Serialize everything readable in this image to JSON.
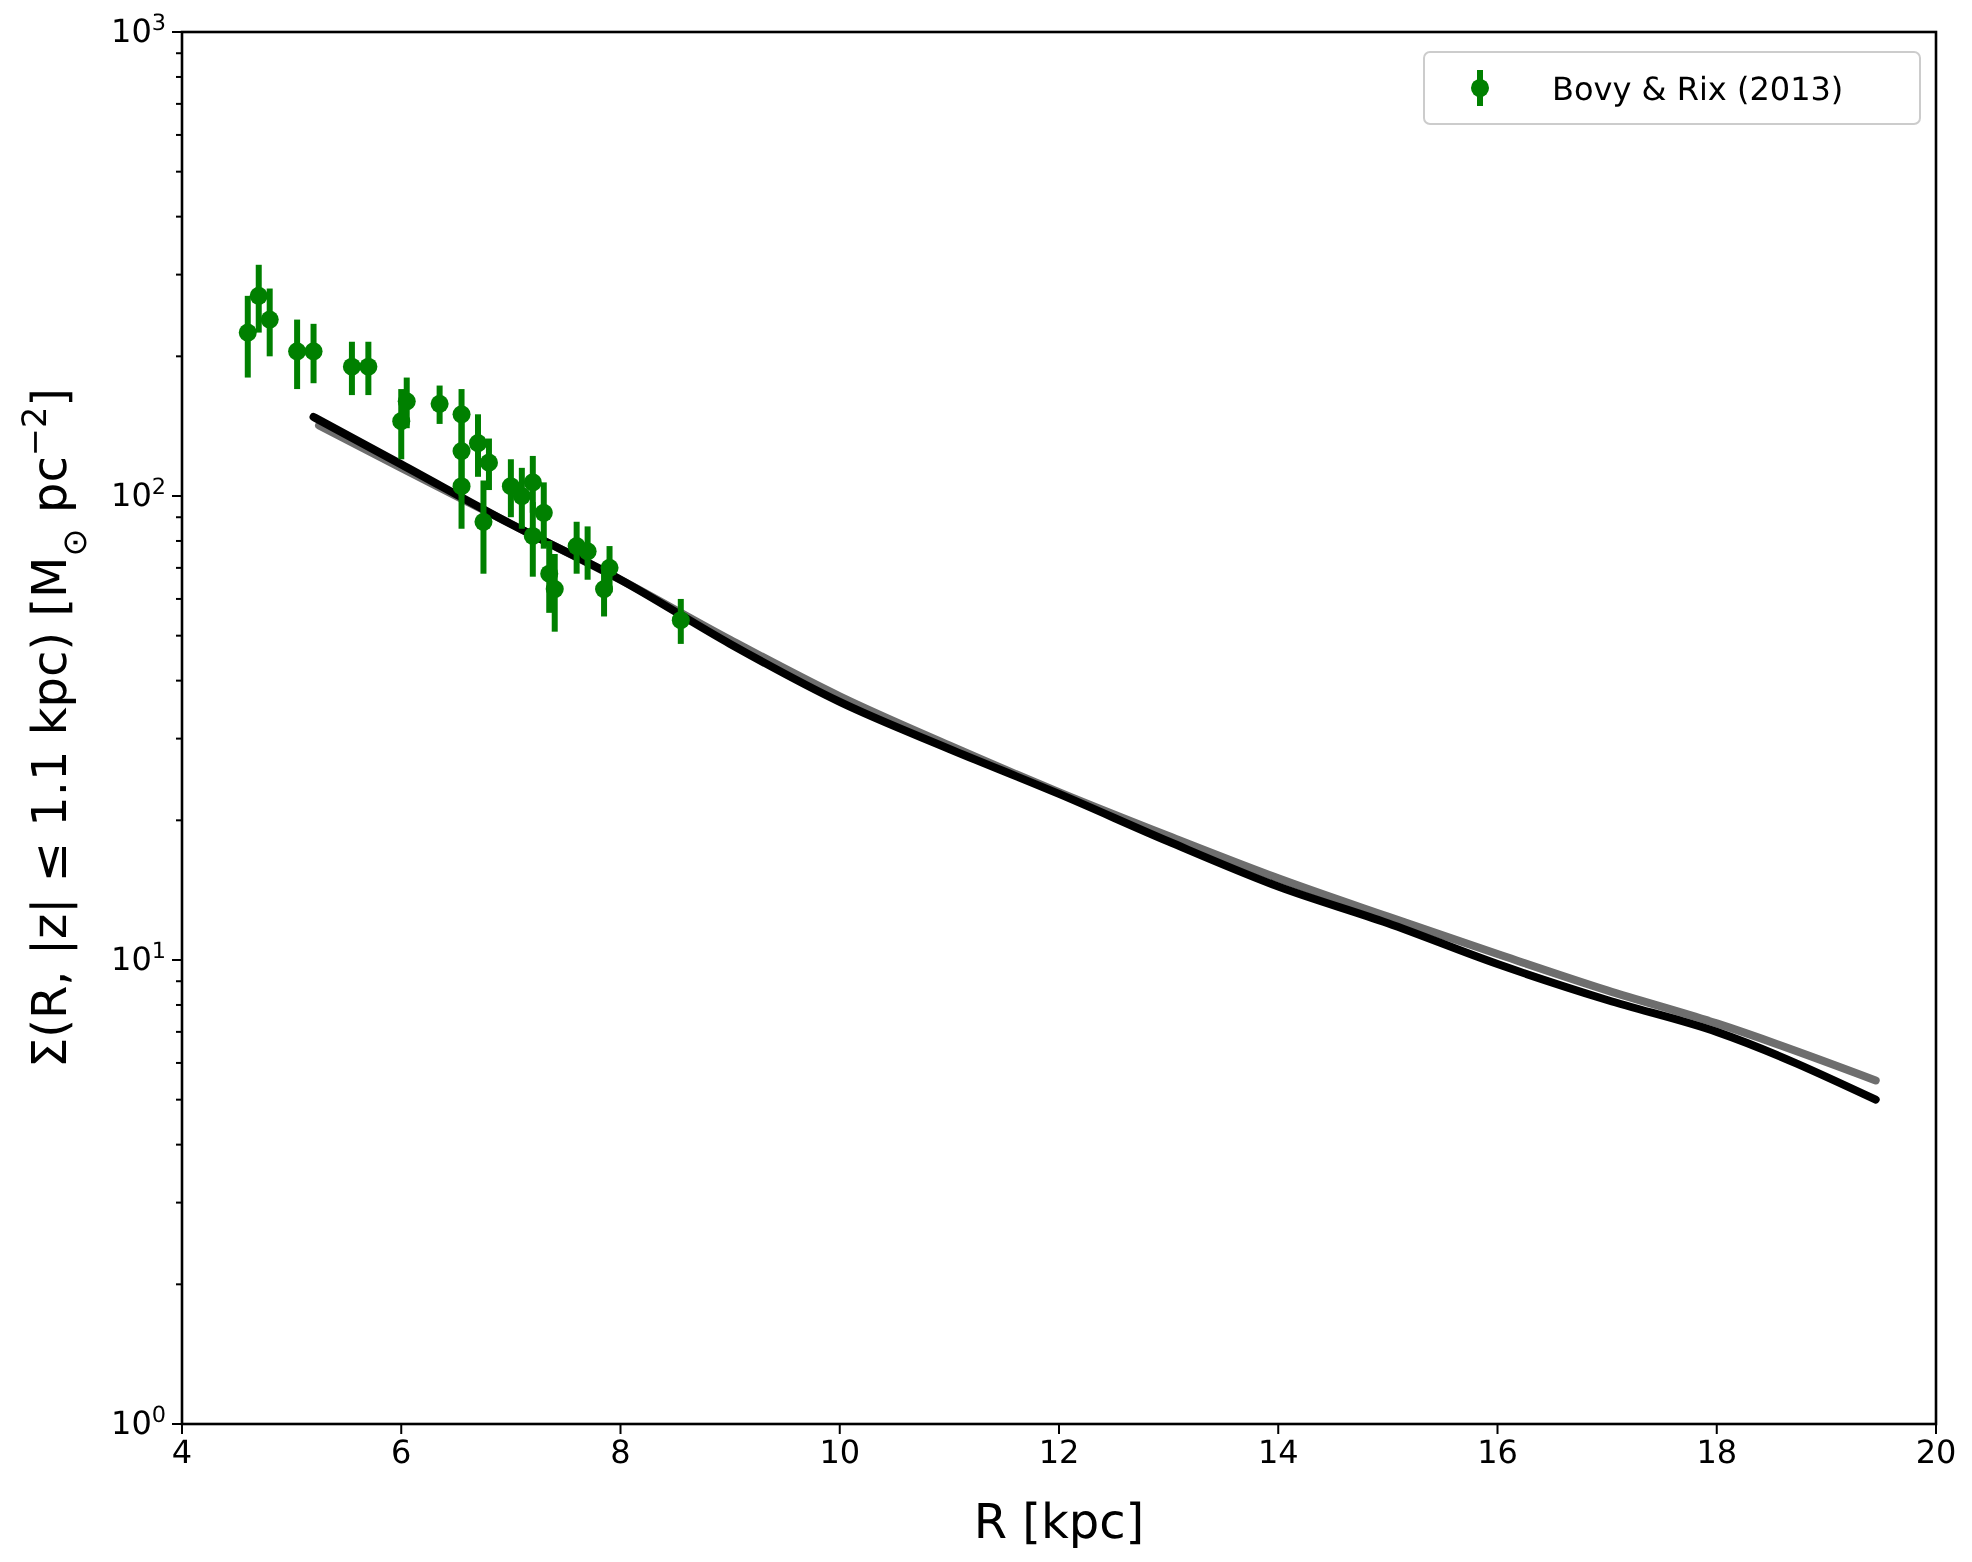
{
  "chart_data": {
    "type": "scatter",
    "xlabel": "R [kpc]",
    "ylabel": "Σ(R, |z| ≤ 1.1 kpc) [M$_{⊙}$ pc$^{−2}$]",
    "log": "y",
    "xlim": [
      4,
      20
    ],
    "xticks": [
      4,
      6,
      8,
      10,
      12,
      14,
      16,
      18,
      20
    ],
    "ylim": [
      1,
      1000
    ],
    "yticks": [
      {
        "value": 1,
        "label": "10$^{0}$"
      },
      {
        "value": 2,
        "label": null
      },
      {
        "value": 3,
        "label": null
      },
      {
        "value": 4,
        "label": null
      },
      {
        "value": 5,
        "label": null
      },
      {
        "value": 6,
        "label": null
      },
      {
        "value": 7,
        "label": null
      },
      {
        "value": 8,
        "label": null
      },
      {
        "value": 9,
        "label": null
      },
      {
        "value": 10,
        "label": "10$^{1}$"
      },
      {
        "value": 20,
        "label": null
      },
      {
        "value": 30,
        "label": null
      },
      {
        "value": 40,
        "label": null
      },
      {
        "value": 50,
        "label": null
      },
      {
        "value": 60,
        "label": null
      },
      {
        "value": 70,
        "label": null
      },
      {
        "value": 80,
        "label": null
      },
      {
        "value": 90,
        "label": null
      },
      {
        "value": 100,
        "label": "10$^{2}$"
      },
      {
        "value": 200,
        "label": null
      },
      {
        "value": 300,
        "label": null
      },
      {
        "value": 400,
        "label": null
      },
      {
        "value": 500,
        "label": null
      },
      {
        "value": 600,
        "label": null
      },
      {
        "value": 700,
        "label": null
      },
      {
        "value": 800,
        "label": null
      },
      {
        "value": 900,
        "label": null
      },
      {
        "value": 1000,
        "label": "10$^{3}$"
      }
    ],
    "grid": false,
    "legend": "top right",
    "series": [
      {
        "type": "line",
        "color": "#6e6e6e",
        "x": [
          5.25,
          6,
          7,
          8,
          9,
          10,
          11,
          12,
          13,
          14,
          15,
          16,
          17,
          18,
          19.45
        ],
        "values": [
          142,
          115,
          87,
          66,
          49,
          37,
          29,
          23,
          18.5,
          15,
          12.4,
          10.3,
          8.6,
          7.3,
          5.5
        ]
      },
      {
        "type": "line",
        "color": "#000000",
        "x": [
          5.2,
          6,
          7,
          8,
          9,
          10,
          11,
          12,
          13,
          14,
          15,
          16,
          17,
          18,
          19.45
        ],
        "values": [
          148,
          117,
          87,
          66,
          48,
          36,
          28.5,
          22.8,
          18,
          14.4,
          12,
          9.8,
          8.2,
          7,
          5
        ]
      },
      {
        "name": "Bovy & Rix (2013)",
        "color": "#008000",
        "marker": "circle",
        "x": [
          4.6,
          4.65,
          4.7,
          4.8,
          5.05,
          5.2,
          5.55,
          5.7,
          6.0,
          6.05,
          6.35,
          6.55,
          6.55,
          6.55,
          6.7,
          6.75,
          6.8,
          7.0,
          7.1,
          7.2,
          7.2,
          7.3,
          7.35,
          7.4,
          7.6,
          7.7,
          7.85,
          7.9,
          8.55
        ],
        "values": [
          225,
          null,
          270,
          240,
          205,
          205,
          190,
          190,
          145,
          160,
          158,
          150,
          105,
          125,
          130,
          88,
          118,
          105,
          100,
          107,
          82,
          92,
          68,
          63,
          78,
          76,
          63,
          70,
          54
        ],
        "errors": [
          45,
          null,
          45,
          40,
          35,
          30,
          25,
          25,
          25,
          20,
          15,
          20,
          20,
          25,
          20,
          20,
          15,
          15,
          15,
          15,
          15,
          15,
          12,
          12,
          10,
          10,
          8,
          8,
          6
        ]
      }
    ]
  }
}
